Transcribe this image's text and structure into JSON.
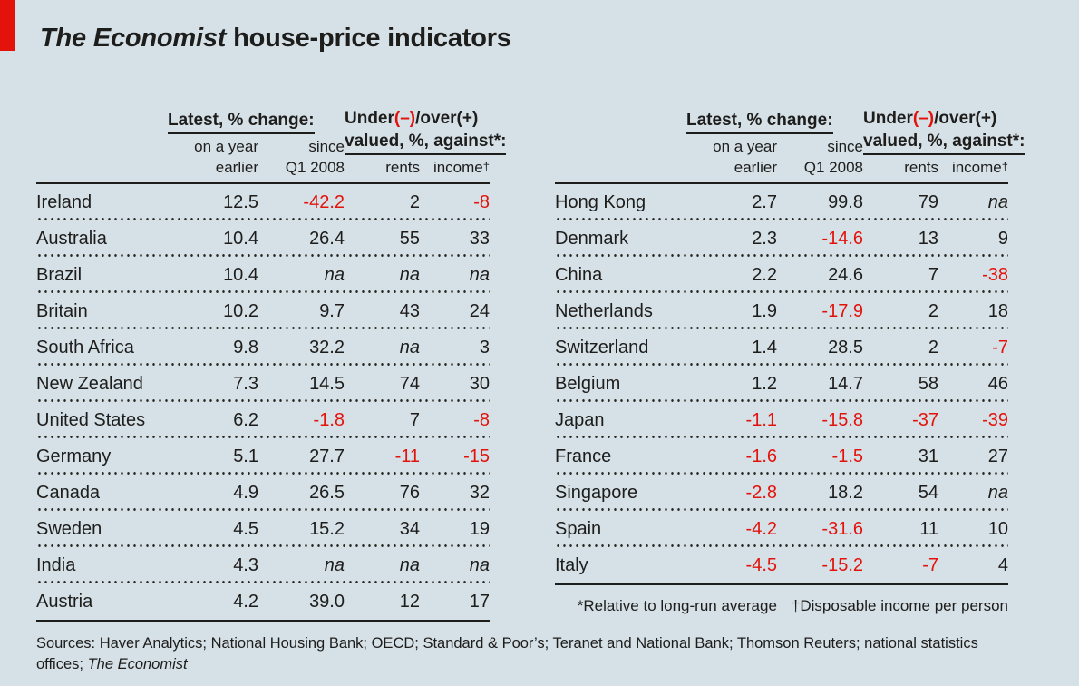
{
  "page": {
    "title_italic": "The Economist",
    "title_rest": " house-price indicators",
    "background_color": "#d6e0e7",
    "accent_red": "#e3120b",
    "text_color": "#1d1d1b"
  },
  "table_header": {
    "latest_title": "Latest, % change:",
    "col1_line1": "on a year",
    "col1_line2": "earlier",
    "col2_line1": "since",
    "col2_line2": "Q1 2008",
    "valuation_pre": "Under",
    "valuation_neg": "(–)",
    "valuation_post": "/over(+)",
    "valuation_line2": "valued, %, against*:",
    "col3": "rents",
    "col4": "income",
    "col4_sup": "†"
  },
  "footnotes": {
    "asterisk": "*Relative to long-run average",
    "dagger": "†Disposable income per person"
  },
  "sources": {
    "text": "Sources: Haver Analytics; National Housing Bank; OECD; Standard & Poor’s; Teranet and National Bank; Thomson Reuters; national statistics offices; ",
    "italic": "The Economist"
  },
  "chart_data": {
    "type": "table",
    "title": "The Economist house-price indicators",
    "column_groups": [
      "Latest, % change:",
      "Under(–)/over(+) valued, %, against*:"
    ],
    "columns": [
      "on a year earlier",
      "since Q1 2008",
      "rents",
      "income†"
    ],
    "negative_values_color": "#e3120b",
    "panels": [
      {
        "rows": [
          [
            "Ireland",
            "12.5",
            "-42.2",
            "2",
            "-8"
          ],
          [
            "Australia",
            "10.4",
            "26.4",
            "55",
            "33"
          ],
          [
            "Brazil",
            "10.4",
            "na",
            "na",
            "na"
          ],
          [
            "Britain",
            "10.2",
            "9.7",
            "43",
            "24"
          ],
          [
            "South Africa",
            "9.8",
            "32.2",
            "na",
            "3"
          ],
          [
            "New Zealand",
            "7.3",
            "14.5",
            "74",
            "30"
          ],
          [
            "United States",
            "6.2",
            "-1.8",
            "7",
            "-8"
          ],
          [
            "Germany",
            "5.1",
            "27.7",
            "-11",
            "-15"
          ],
          [
            "Canada",
            "4.9",
            "26.5",
            "76",
            "32"
          ],
          [
            "Sweden",
            "4.5",
            "15.2",
            "34",
            "19"
          ],
          [
            "India",
            "4.3",
            "na",
            "na",
            "na"
          ],
          [
            "Austria",
            "4.2",
            "39.0",
            "12",
            "17"
          ]
        ]
      },
      {
        "rows": [
          [
            "Hong Kong",
            "2.7",
            "99.8",
            "79",
            "na"
          ],
          [
            "Denmark",
            "2.3",
            "-14.6",
            "13",
            "9"
          ],
          [
            "China",
            "2.2",
            "24.6",
            "7",
            "-38"
          ],
          [
            "Netherlands",
            "1.9",
            "-17.9",
            "2",
            "18"
          ],
          [
            "Switzerland",
            "1.4",
            "28.5",
            "2",
            "-7"
          ],
          [
            "Belgium",
            "1.2",
            "14.7",
            "58",
            "46"
          ],
          [
            "Japan",
            "-1.1",
            "-15.8",
            "-37",
            "-39"
          ],
          [
            "France",
            "-1.6",
            "-1.5",
            "31",
            "27"
          ],
          [
            "Singapore",
            "-2.8",
            "18.2",
            "54",
            "na"
          ],
          [
            "Spain",
            "-4.2",
            "-31.6",
            "11",
            "10"
          ],
          [
            "Italy",
            "-4.5",
            "-15.2",
            "-7",
            "4"
          ]
        ]
      }
    ]
  }
}
